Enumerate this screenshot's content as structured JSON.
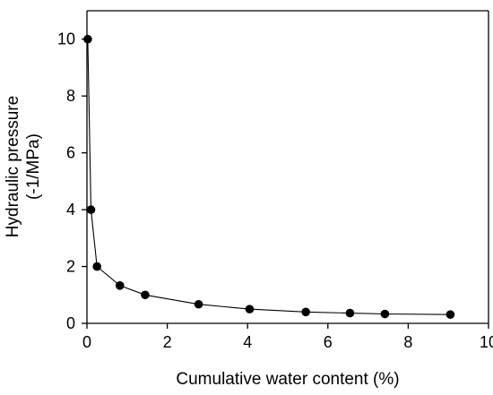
{
  "chart_data": {
    "type": "scatter",
    "title": "",
    "xlabel": "Cumulative water content (%)",
    "ylabel_line1": "Hydraulic pressure",
    "ylabel_line2": "(-1/MPa)",
    "xlim": [
      0,
      10
    ],
    "ylim": [
      0,
      11
    ],
    "xticks": [
      0,
      2,
      4,
      6,
      8,
      10
    ],
    "yticks": [
      0,
      2,
      4,
      6,
      8,
      10
    ],
    "grid": false,
    "legend": "none",
    "line_color": "#000000",
    "marker_color": "#000000",
    "series": [
      {
        "x": [
          0.02,
          0.1,
          0.25,
          0.82,
          1.45,
          2.78,
          4.05,
          5.45,
          6.55,
          7.42,
          9.05
        ],
        "y": [
          10.0,
          4.0,
          2.0,
          1.33,
          1.0,
          0.67,
          0.5,
          0.4,
          0.36,
          0.33,
          0.31
        ]
      }
    ]
  }
}
